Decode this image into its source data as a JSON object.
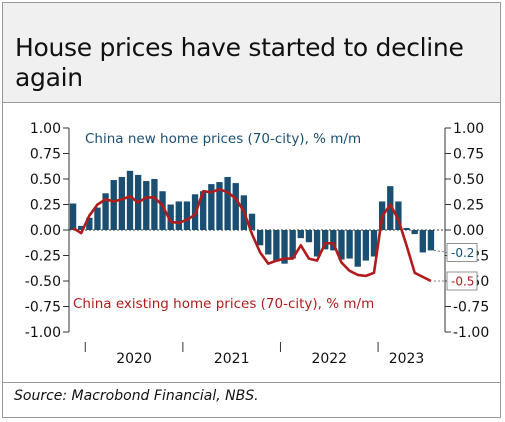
{
  "title": "House prices have started to decline again",
  "source": "Source: Macrobond Financial, NBS.",
  "chart_data": {
    "type": "bar",
    "ylim": [
      -1.0,
      1.0
    ],
    "yticks": [
      "1.00",
      "0.75",
      "0.50",
      "0.25",
      "0.00",
      "-0.25",
      "-0.50",
      "-0.75",
      "-1.00"
    ],
    "yticks_right": [
      "1.00",
      "0.75",
      "0.50",
      "0.25",
      "0.00",
      "-0.25",
      "-0.50",
      "-0.75",
      "-1.00"
    ],
    "year_labels": [
      "2020",
      "2021",
      "2022",
      "2023"
    ],
    "last_value_labels": [
      "-0.2",
      "-0.5"
    ],
    "colors": {
      "bars": "#1b4f72",
      "line": "#b01c1c"
    },
    "x": [
      "2019-11",
      "2019-12",
      "2020-01",
      "2020-02",
      "2020-03",
      "2020-04",
      "2020-05",
      "2020-06",
      "2020-07",
      "2020-08",
      "2020-09",
      "2020-10",
      "2020-11",
      "2020-12",
      "2021-01",
      "2021-02",
      "2021-03",
      "2021-04",
      "2021-05",
      "2021-06",
      "2021-07",
      "2021-08",
      "2021-09",
      "2021-10",
      "2021-11",
      "2021-12",
      "2022-01",
      "2022-02",
      "2022-03",
      "2022-04",
      "2022-05",
      "2022-06",
      "2022-07",
      "2022-08",
      "2022-09",
      "2022-10",
      "2022-11",
      "2022-12",
      "2023-01",
      "2023-02",
      "2023-03",
      "2023-04",
      "2023-05",
      "2023-06",
      "2023-07"
    ],
    "series": [
      {
        "name": "China new home prices (70-city), % m/m",
        "kind": "bar",
        "values": [
          0.26,
          0.04,
          0.12,
          0.22,
          0.36,
          0.49,
          0.52,
          0.58,
          0.54,
          0.48,
          0.5,
          0.38,
          0.25,
          0.28,
          0.28,
          0.35,
          0.38,
          0.45,
          0.47,
          0.52,
          0.46,
          0.34,
          0.16,
          -0.15,
          -0.24,
          -0.31,
          -0.33,
          -0.28,
          -0.08,
          -0.12,
          -0.26,
          -0.19,
          -0.2,
          -0.29,
          -0.28,
          -0.36,
          -0.3,
          -0.26,
          0.28,
          0.43,
          0.28,
          0.02,
          -0.04,
          -0.22,
          -0.2
        ]
      },
      {
        "name": "China existing home prices (70-city), % m/m",
        "kind": "line",
        "values": [
          0.02,
          -0.03,
          0.14,
          0.25,
          0.3,
          0.28,
          0.3,
          0.33,
          0.27,
          0.32,
          0.32,
          0.24,
          0.08,
          0.07,
          0.1,
          0.15,
          0.38,
          0.37,
          0.4,
          0.37,
          0.31,
          0.18,
          -0.04,
          -0.22,
          -0.33,
          -0.3,
          -0.28,
          -0.28,
          -0.15,
          -0.28,
          -0.3,
          -0.13,
          -0.13,
          -0.32,
          -0.4,
          -0.44,
          -0.45,
          -0.42,
          0.13,
          0.25,
          0.1,
          -0.15,
          -0.42,
          -0.46,
          -0.5
        ]
      }
    ]
  }
}
